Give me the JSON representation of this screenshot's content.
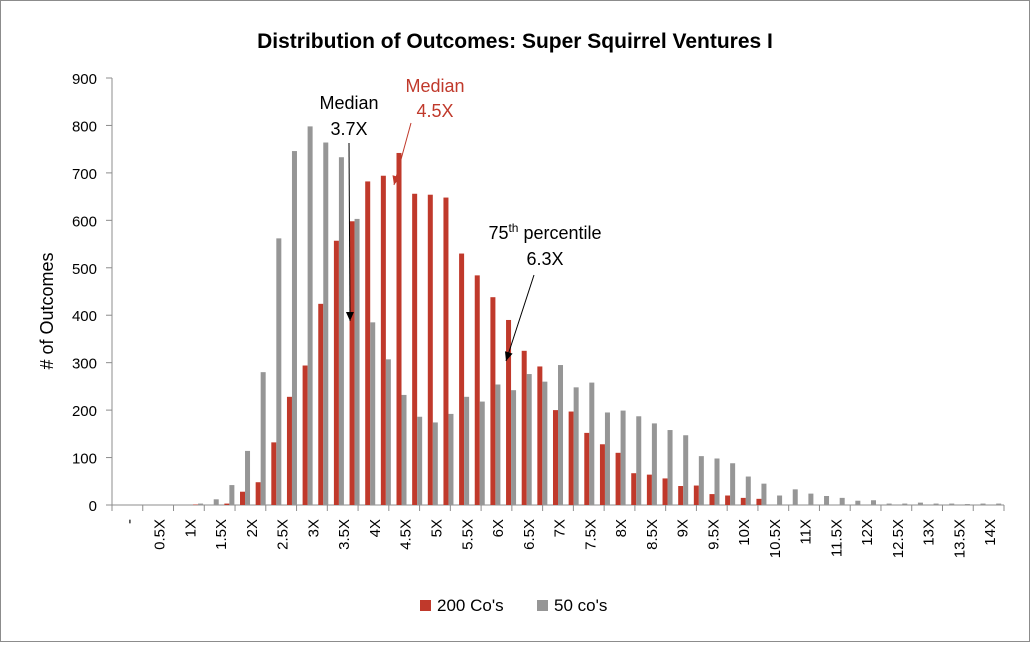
{
  "chart_data": {
    "type": "bar",
    "title": "Distribution of Outcomes: Super Squirrel Ventures I",
    "xlabel": "",
    "ylabel": "# of Outcomes",
    "ylim": [
      0,
      900
    ],
    "yticks": [
      0,
      100,
      200,
      300,
      400,
      500,
      600,
      700,
      800,
      900
    ],
    "grid": false,
    "legend_position": "bottom",
    "x_tick_labels": [
      "-",
      "0.5X",
      "1X",
      "1.5X",
      "2X",
      "2.5X",
      "3X",
      "3.5X",
      "4X",
      "4.5X",
      "5X",
      "5.5X",
      "6X",
      "6.5X",
      "7X",
      "7.5X",
      "8X",
      "8.5X",
      "9X",
      "9.5X",
      "10X",
      "10.5X",
      "11X",
      "11.5X",
      "12X",
      "12.5X",
      "13X",
      "13.5X",
      "14X"
    ],
    "bins_per_tick": 2,
    "series": [
      {
        "name": "200 Co's",
        "color": "#c0392b",
        "values": [
          0,
          0,
          0,
          0,
          0,
          1,
          0,
          3,
          28,
          48,
          132,
          228,
          294,
          424,
          557,
          598,
          682,
          694,
          742,
          656,
          654,
          648,
          530,
          484,
          438,
          390,
          325,
          292,
          200,
          197,
          152,
          128,
          110,
          67,
          64,
          56,
          40,
          41,
          23,
          20,
          15,
          13,
          0,
          0,
          0,
          0,
          0,
          0,
          0,
          0,
          0,
          0,
          0,
          0,
          0,
          0,
          0
        ]
      },
      {
        "name": "50 co's",
        "color": "#969696",
        "values": [
          0,
          0,
          0,
          0,
          0,
          3,
          12,
          42,
          114,
          280,
          562,
          746,
          798,
          764,
          733,
          603,
          385,
          307,
          232,
          186,
          174,
          192,
          228,
          218,
          254,
          242,
          276,
          260,
          295,
          248,
          258,
          195,
          199,
          187,
          172,
          158,
          147,
          103,
          98,
          88,
          60,
          45,
          20,
          33,
          24,
          19,
          15,
          9,
          10,
          3,
          3,
          5,
          3,
          3,
          2,
          3,
          3
        ]
      }
    ],
    "annotations": [
      {
        "line1": "Median",
        "line2": "3.7X",
        "color": "#000000",
        "at_x": 3.7
      },
      {
        "line1": "Median",
        "line2": "4.5X",
        "color": "#c0392b",
        "at_x": 4.5
      },
      {
        "line1_base": "75",
        "line1_sup": "th",
        "line1_rest": " percentile",
        "line2": "6.3X",
        "color": "#000000",
        "at_x": 6.3
      }
    ]
  }
}
